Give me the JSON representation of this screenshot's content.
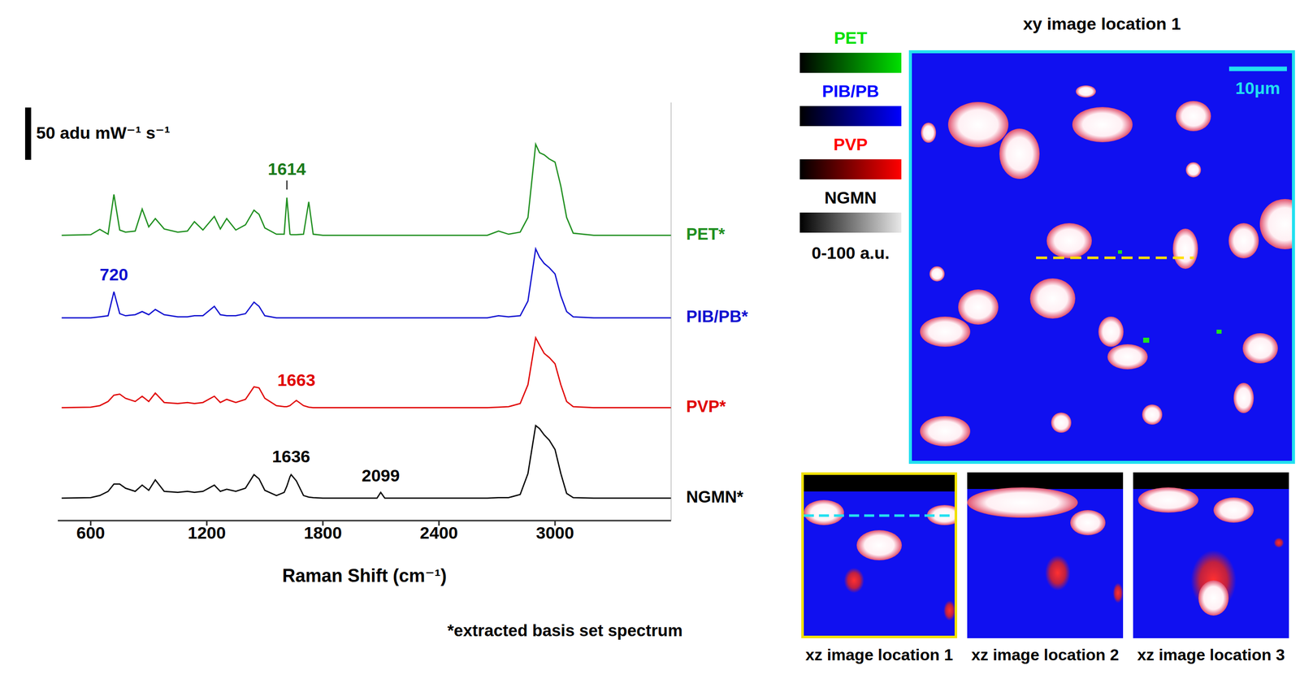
{
  "chart_data": {
    "type": "line",
    "x_label": "Raman Shift (cm⁻¹)",
    "xlim": [
      430,
      3600
    ],
    "xticks": [
      600,
      1200,
      1800,
      2400,
      3000
    ],
    "ylim": [
      0,
      400
    ],
    "tick_labels": "x",
    "scale_bar": {
      "value": 50,
      "label": "50 adu mW⁻¹ s⁻¹"
    },
    "footnote": "*extracted basis set spectrum",
    "x": [
      450,
      600,
      647,
      690,
      720,
      750,
      780,
      830,
      866,
      900,
      934,
      980,
      1050,
      1100,
      1136,
      1180,
      1239,
      1270,
      1303,
      1350,
      1400,
      1444,
      1470,
      1500,
      1560,
      1600,
      1614,
      1630,
      1636,
      1663,
      1700,
      1727,
      1750,
      1800,
      2000,
      2080,
      2099,
      2120,
      2400,
      2650,
      2708,
      2760,
      2820,
      2860,
      2900,
      2920,
      2944,
      2970,
      3000,
      3030,
      3060,
      3094,
      3200,
      3400,
      3600
    ],
    "series": [
      {
        "name": "PET*",
        "color": "#1f8f1f",
        "values": [
          273,
          273.5,
          278.6,
          274,
          312,
          278,
          276,
          277,
          298,
          281,
          289,
          279,
          276,
          277,
          286,
          278,
          291,
          279,
          289,
          278,
          283,
          297,
          293,
          280,
          274,
          274,
          309,
          274,
          273.5,
          273.5,
          274,
          305,
          274,
          273,
          273,
          273,
          273,
          273,
          273,
          273,
          277,
          274,
          276,
          290,
          360,
          352,
          350,
          346,
          343,
          320,
          290,
          275,
          273,
          273,
          273
        ]
      },
      {
        "name": "PIB/PB*",
        "color": "#1010d0",
        "values": [
          194,
          194,
          195,
          196,
          219,
          198,
          196,
          197,
          200,
          197,
          202,
          197,
          195,
          195,
          196,
          196,
          205,
          197,
          196,
          196,
          198,
          209,
          205,
          196,
          194,
          194,
          194,
          194,
          194,
          194,
          194,
          194,
          194,
          194,
          194,
          194,
          194,
          194,
          194,
          194,
          196,
          195,
          196,
          210,
          260,
          252,
          246,
          242,
          236,
          215,
          200,
          195,
          194,
          194,
          194
        ]
      },
      {
        "name": "PVP*",
        "color": "#e00000",
        "values": [
          108,
          108.5,
          110,
          114,
          120,
          121,
          117,
          114,
          119,
          114,
          122,
          113,
          112,
          113,
          112,
          113,
          119,
          113,
          116,
          113,
          116,
          128,
          127,
          117,
          110,
          109,
          109,
          110,
          111,
          115,
          110,
          108.5,
          108,
          108,
          108,
          108,
          108,
          108,
          108,
          108,
          108.5,
          109,
          112,
          130,
          175,
          168,
          160,
          156,
          150,
          130,
          114,
          109,
          108,
          108,
          108
        ]
      },
      {
        "name": "NGMN*",
        "color": "#000000",
        "values": [
          21.5,
          22,
          24,
          28,
          35,
          35,
          31,
          28,
          34,
          29,
          39,
          28,
          27,
          28,
          27,
          28,
          34,
          28,
          30,
          28,
          31,
          44,
          40,
          29,
          24,
          27,
          33,
          42,
          44,
          38,
          24,
          22.5,
          22,
          21.5,
          21.5,
          21.5,
          27,
          21.5,
          21.5,
          21.5,
          22,
          22,
          25,
          45,
          91,
          88,
          82,
          77,
          68,
          45,
          26,
          22,
          21.5,
          21.5,
          21.5
        ]
      }
    ],
    "annotations": [
      {
        "text": "1614",
        "x": 1614,
        "y": 335,
        "color": "#1a7a1a",
        "marker": "line"
      },
      {
        "text": "720",
        "x": 720,
        "y": 234,
        "color": "#1010d0"
      },
      {
        "text": "1663",
        "x": 1663,
        "y": 133,
        "color": "#e00000"
      },
      {
        "text": "1636",
        "x": 1636,
        "y": 60,
        "color": "#000000"
      },
      {
        "text": "2099",
        "x": 2099,
        "y": 42,
        "color": "#000000"
      }
    ]
  },
  "images": {
    "legend": {
      "channels": [
        {
          "name": "PET",
          "color": "#00e000"
        },
        {
          "name": "PIB/PB",
          "color": "#0000ff"
        },
        {
          "name": "PVP",
          "color": "#ff0000"
        },
        {
          "name": "NGMN",
          "color": "#e8e8e8"
        }
      ],
      "range_label": "0-100 a.u."
    },
    "xy_image": {
      "title": "xy image location 1",
      "scale_bar": "10μm"
    },
    "xz_images": [
      "xz image location 1",
      "xz image location 2",
      "xz image location 3"
    ]
  }
}
